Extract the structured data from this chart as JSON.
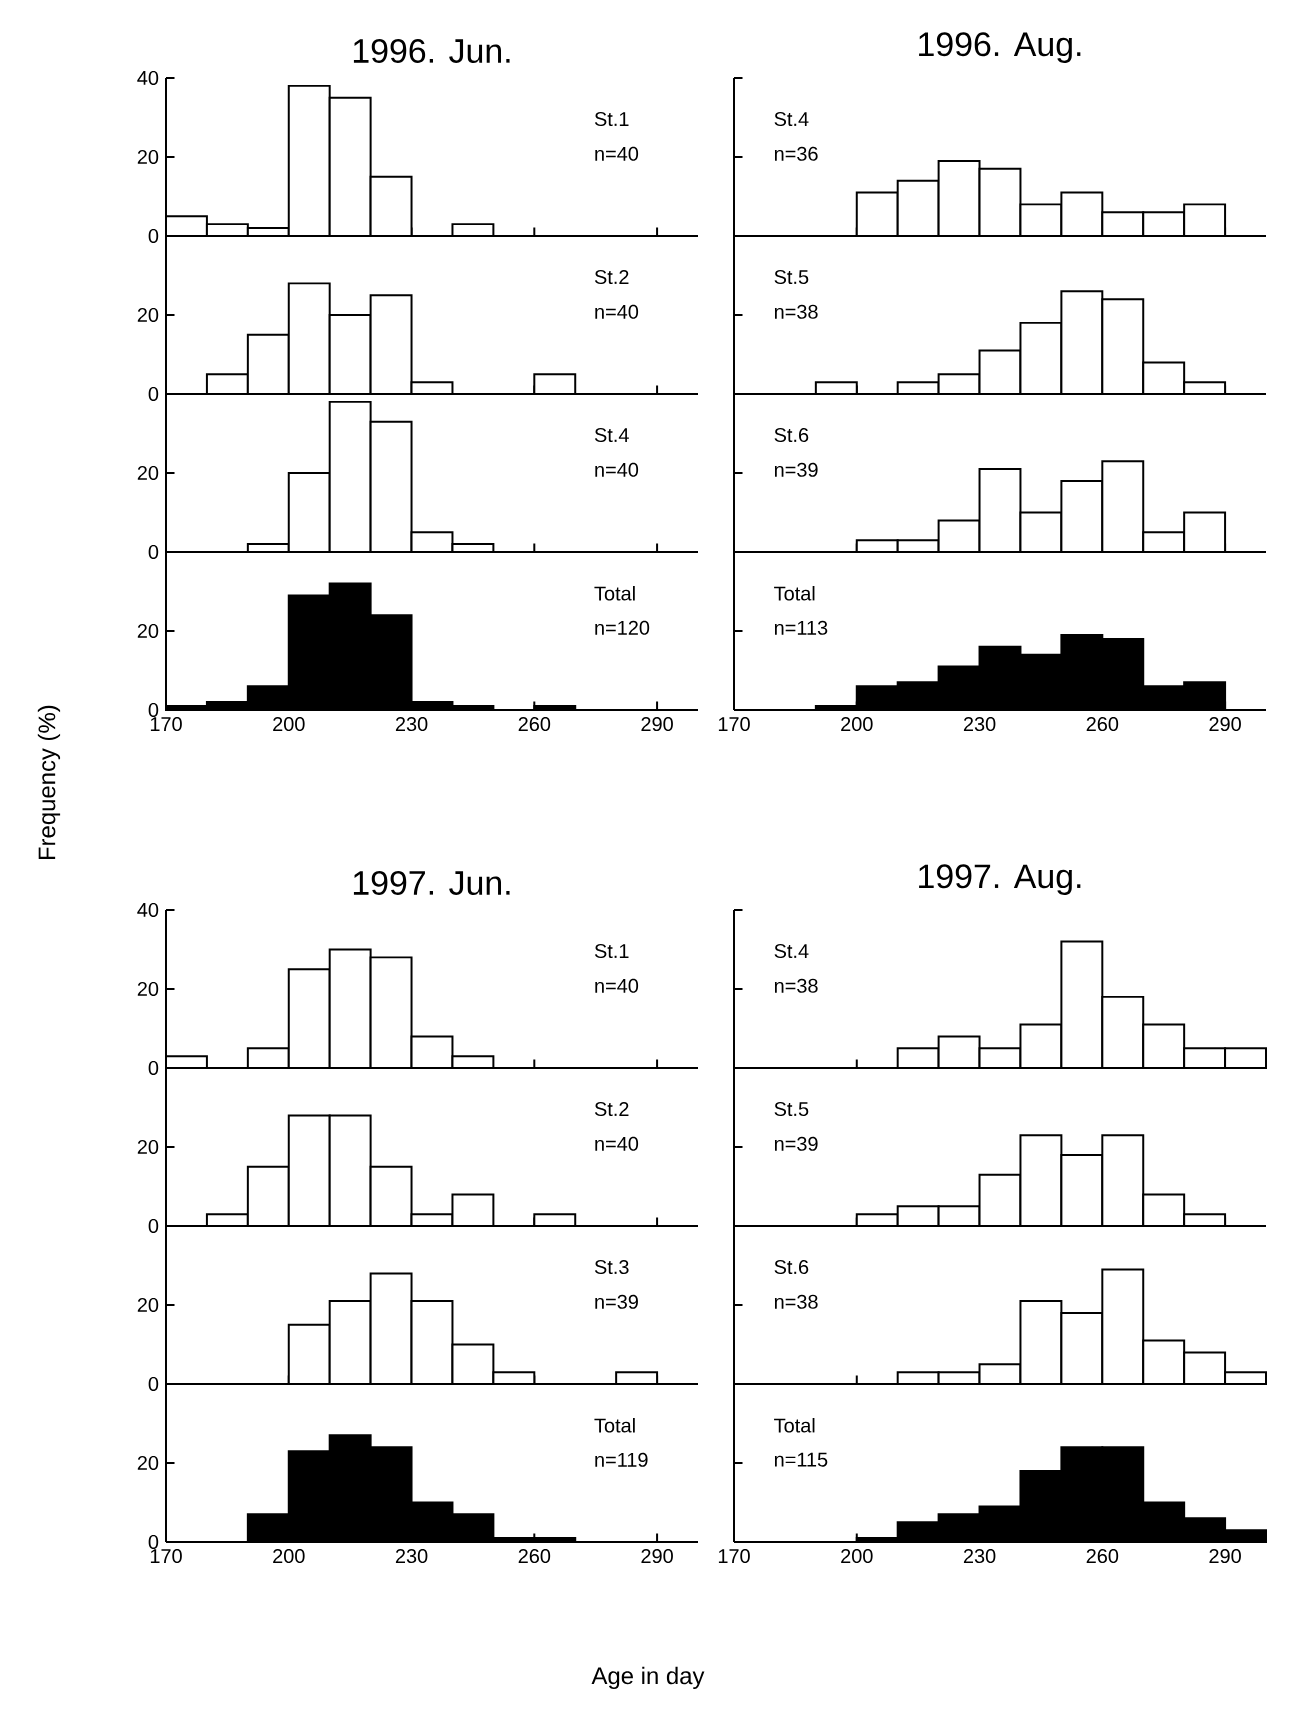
{
  "chart_data": [
    {
      "type": "histogram",
      "title": "1996. Jun.",
      "bins": [
        170,
        180,
        190,
        200,
        210,
        220,
        230,
        240,
        250,
        260,
        270,
        280,
        290,
        300
      ],
      "values": [
        5,
        3,
        2,
        38,
        35,
        15,
        0,
        3,
        0,
        0,
        0,
        0,
        0
      ],
      "color": "#ffffff",
      "xlim": [
        170,
        300
      ],
      "ylim": [
        0,
        40
      ],
      "xticks": [
        170,
        200,
        230,
        260,
        290
      ],
      "yticks": [
        0,
        20,
        40
      ],
      "tick_labels": "y",
      "annotations": [
        "St.1",
        "n=40"
      ]
    },
    {
      "type": "histogram",
      "bins": [
        170,
        180,
        190,
        200,
        210,
        220,
        230,
        240,
        250,
        260,
        270,
        280,
        290,
        300
      ],
      "values": [
        0,
        5,
        15,
        28,
        20,
        25,
        3,
        0,
        0,
        5,
        0,
        0,
        0
      ],
      "color": "#ffffff",
      "xlim": [
        170,
        300
      ],
      "ylim": [
        0,
        40
      ],
      "xticks": [
        170,
        200,
        230,
        260,
        290
      ],
      "yticks": [
        0,
        20
      ],
      "tick_labels": "y",
      "annotations": [
        "St.2",
        "n=40"
      ]
    },
    {
      "type": "histogram",
      "bins": [
        170,
        180,
        190,
        200,
        210,
        220,
        230,
        240,
        250,
        260,
        270,
        280,
        290,
        300
      ],
      "values": [
        0,
        0,
        2,
        20,
        38,
        33,
        5,
        2,
        0,
        0,
        0,
        0,
        0
      ],
      "color": "#ffffff",
      "xlim": [
        170,
        300
      ],
      "ylim": [
        0,
        40
      ],
      "xticks": [
        170,
        200,
        230,
        260,
        290
      ],
      "yticks": [
        0,
        20
      ],
      "tick_labels": "y",
      "annotations": [
        "St.4",
        "n=40"
      ]
    },
    {
      "type": "histogram",
      "bins": [
        170,
        180,
        190,
        200,
        210,
        220,
        230,
        240,
        250,
        260,
        270,
        280,
        290,
        300
      ],
      "values": [
        1,
        2,
        6,
        29,
        32,
        24,
        2,
        1,
        0,
        1,
        0,
        0,
        0
      ],
      "color": "#000000",
      "xlim": [
        170,
        300
      ],
      "ylim": [
        0,
        40
      ],
      "xticks": [
        170,
        200,
        230,
        260,
        290
      ],
      "yticks": [
        0,
        20
      ],
      "ylabel": "Frequency (%)",
      "annotations": [
        "Total",
        "n=120"
      ]
    },
    {
      "type": "histogram",
      "title": "1996. Aug.",
      "bins": [
        170,
        180,
        190,
        200,
        210,
        220,
        230,
        240,
        250,
        260,
        270,
        280,
        290,
        300
      ],
      "values": [
        0,
        0,
        0,
        11,
        14,
        19,
        17,
        8,
        11,
        6,
        6,
        8,
        0
      ],
      "color": "#ffffff",
      "xlim": [
        170,
        300
      ],
      "ylim": [
        0,
        40
      ],
      "xticks": [
        170,
        200,
        230,
        260,
        290
      ],
      "yticks": [
        0,
        20,
        40
      ],
      "tick_labels": false,
      "annotations": [
        "St.4",
        "n=36"
      ]
    },
    {
      "type": "histogram",
      "bins": [
        170,
        180,
        190,
        200,
        210,
        220,
        230,
        240,
        250,
        260,
        270,
        280,
        290,
        300
      ],
      "values": [
        0,
        0,
        3,
        0,
        3,
        5,
        11,
        18,
        26,
        24,
        8,
        3,
        0
      ],
      "color": "#ffffff",
      "xlim": [
        170,
        300
      ],
      "ylim": [
        0,
        40
      ],
      "xticks": [
        170,
        200,
        230,
        260,
        290
      ],
      "yticks": [
        0,
        20
      ],
      "tick_labels": false,
      "annotations": [
        "St.5",
        "n=38"
      ]
    },
    {
      "type": "histogram",
      "bins": [
        170,
        180,
        190,
        200,
        210,
        220,
        230,
        240,
        250,
        260,
        270,
        280,
        290,
        300
      ],
      "values": [
        0,
        0,
        0,
        3,
        3,
        8,
        21,
        10,
        18,
        23,
        5,
        10,
        0
      ],
      "color": "#ffffff",
      "xlim": [
        170,
        300
      ],
      "ylim": [
        0,
        40
      ],
      "xticks": [
        170,
        200,
        230,
        260,
        290
      ],
      "yticks": [
        0,
        20
      ],
      "tick_labels": false,
      "annotations": [
        "St.6",
        "n=39"
      ]
    },
    {
      "type": "histogram",
      "bins": [
        170,
        180,
        190,
        200,
        210,
        220,
        230,
        240,
        250,
        260,
        270,
        280,
        290,
        300
      ],
      "values": [
        0,
        0,
        1,
        6,
        7,
        11,
        16,
        14,
        19,
        18,
        6,
        7,
        0
      ],
      "color": "#000000",
      "xlim": [
        170,
        300
      ],
      "ylim": [
        0,
        40
      ],
      "xticks": [
        170,
        200,
        230,
        260,
        290
      ],
      "yticks": [
        0,
        20
      ],
      "tick_labels": "x",
      "annotations": [
        "Total",
        "n=113"
      ]
    },
    {
      "type": "histogram",
      "title": "1997. Jun.",
      "bins": [
        170,
        180,
        190,
        200,
        210,
        220,
        230,
        240,
        250,
        260,
        270,
        280,
        290,
        300
      ],
      "values": [
        3,
        0,
        5,
        25,
        30,
        28,
        8,
        3,
        0,
        0,
        0,
        0,
        0
      ],
      "color": "#ffffff",
      "xlim": [
        170,
        300
      ],
      "ylim": [
        0,
        40
      ],
      "xticks": [
        170,
        200,
        230,
        260,
        290
      ],
      "yticks": [
        0,
        20,
        40
      ],
      "tick_labels": "y",
      "annotations": [
        "St.1",
        "n=40"
      ]
    },
    {
      "type": "histogram",
      "bins": [
        170,
        180,
        190,
        200,
        210,
        220,
        230,
        240,
        250,
        260,
        270,
        280,
        290,
        300
      ],
      "values": [
        0,
        3,
        15,
        28,
        28,
        15,
        3,
        8,
        0,
        3,
        0,
        0,
        0
      ],
      "color": "#ffffff",
      "xlim": [
        170,
        300
      ],
      "ylim": [
        0,
        40
      ],
      "xticks": [
        170,
        200,
        230,
        260,
        290
      ],
      "yticks": [
        0,
        20
      ],
      "tick_labels": "y",
      "annotations": [
        "St.2",
        "n=40"
      ]
    },
    {
      "type": "histogram",
      "bins": [
        170,
        180,
        190,
        200,
        210,
        220,
        230,
        240,
        250,
        260,
        270,
        280,
        290,
        300
      ],
      "values": [
        0,
        0,
        0,
        15,
        21,
        28,
        21,
        10,
        3,
        0,
        0,
        3,
        0
      ],
      "color": "#ffffff",
      "xlim": [
        170,
        300
      ],
      "ylim": [
        0,
        40
      ],
      "xticks": [
        170,
        200,
        230,
        260,
        290
      ],
      "yticks": [
        0,
        20
      ],
      "tick_labels": "y",
      "annotations": [
        "St.3",
        "n=39"
      ]
    },
    {
      "type": "histogram",
      "bins": [
        170,
        180,
        190,
        200,
        210,
        220,
        230,
        240,
        250,
        260,
        270,
        280,
        290,
        300
      ],
      "values": [
        0,
        0,
        7,
        23,
        27,
        24,
        10,
        7,
        1,
        1,
        0,
        0,
        0
      ],
      "color": "#000000",
      "xlim": [
        170,
        300
      ],
      "ylim": [
        0,
        40
      ],
      "xticks": [
        170,
        200,
        230,
        260,
        290
      ],
      "yticks": [
        0,
        20
      ],
      "xlabel": "Age in day",
      "annotations": [
        "Total",
        "n=119"
      ]
    },
    {
      "type": "histogram",
      "title": "1997. Aug.",
      "bins": [
        170,
        180,
        190,
        200,
        210,
        220,
        230,
        240,
        250,
        260,
        270,
        280,
        290,
        300
      ],
      "values": [
        0,
        0,
        0,
        0,
        5,
        8,
        5,
        11,
        32,
        18,
        11,
        5,
        5
      ],
      "color": "#ffffff",
      "xlim": [
        170,
        300
      ],
      "ylim": [
        0,
        40
      ],
      "xticks": [
        170,
        200,
        230,
        260,
        290
      ],
      "yticks": [
        0,
        20,
        40
      ],
      "tick_labels": false,
      "annotations": [
        "St.4",
        "n=38"
      ]
    },
    {
      "type": "histogram",
      "bins": [
        170,
        180,
        190,
        200,
        210,
        220,
        230,
        240,
        250,
        260,
        270,
        280,
        290,
        300
      ],
      "values": [
        0,
        0,
        0,
        3,
        5,
        5,
        13,
        23,
        18,
        23,
        8,
        3,
        0
      ],
      "color": "#ffffff",
      "xlim": [
        170,
        300
      ],
      "ylim": [
        0,
        40
      ],
      "xticks": [
        170,
        200,
        230,
        260,
        290
      ],
      "yticks": [
        0,
        20
      ],
      "tick_labels": false,
      "annotations": [
        "St.5",
        "n=39"
      ]
    },
    {
      "type": "histogram",
      "bins": [
        170,
        180,
        190,
        200,
        210,
        220,
        230,
        240,
        250,
        260,
        270,
        280,
        290,
        300
      ],
      "values": [
        0,
        0,
        0,
        0,
        3,
        3,
        5,
        21,
        18,
        29,
        11,
        8,
        3
      ],
      "color": "#ffffff",
      "xlim": [
        170,
        300
      ],
      "ylim": [
        0,
        40
      ],
      "xticks": [
        170,
        200,
        230,
        260,
        290
      ],
      "yticks": [
        0,
        20
      ],
      "tick_labels": false,
      "annotations": [
        "St.6",
        "n=38"
      ]
    },
    {
      "type": "histogram",
      "bins": [
        170,
        180,
        190,
        200,
        210,
        220,
        230,
        240,
        250,
        260,
        270,
        280,
        290,
        300
      ],
      "values": [
        0,
        0,
        0,
        1,
        5,
        7,
        9,
        18,
        24,
        24,
        10,
        6,
        3
      ],
      "color": "#000000",
      "xlim": [
        170,
        300
      ],
      "ylim": [
        0,
        40
      ],
      "xticks": [
        170,
        200,
        230,
        260,
        290
      ],
      "yticks": [
        0,
        20
      ],
      "tick_labels": "x",
      "annotations": [
        "Total",
        "n=115"
      ]
    }
  ]
}
